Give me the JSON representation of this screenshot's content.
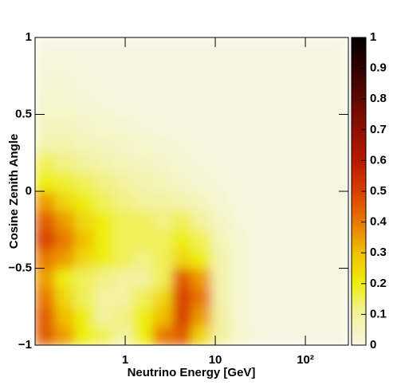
{
  "chart_data": {
    "type": "heatmap",
    "xlabel": "Neutrino Energy [GeV]",
    "ylabel": "Cosine Zenith Angle",
    "xscale": "log",
    "xlim": [
      0.1,
      300
    ],
    "ylim": [
      -1,
      1
    ],
    "xticks": [
      1,
      10,
      {
        "value": 100,
        "label": "10²"
      }
    ],
    "yticks": [
      {
        "value": -1,
        "label": "−1"
      },
      {
        "value": -0.5,
        "label": "−0.5"
      },
      0,
      0.5,
      1
    ],
    "xbins": [
      0.1,
      0.165,
      0.272,
      0.449,
      0.741,
      1.22,
      2.02,
      3.33,
      5.49,
      9.06,
      14.9,
      24.7,
      40.7,
      67.1,
      111,
      183,
      300
    ],
    "ybins": [
      -1,
      -0.875,
      -0.75,
      -0.625,
      -0.5,
      -0.375,
      -0.25,
      -0.125,
      0,
      0.125,
      0.25,
      0.375,
      0.5,
      0.625,
      0.75,
      0.875,
      1
    ],
    "z": [
      [
        0.45,
        0.35,
        0.2,
        0.15,
        0.1,
        0.2,
        0.4,
        0.45,
        0.25,
        0.1,
        0.03,
        0,
        0,
        0,
        0,
        0
      ],
      [
        0.45,
        0.3,
        0.2,
        0.1,
        0.12,
        0.2,
        0.3,
        0.5,
        0.35,
        0.1,
        0.02,
        0,
        0,
        0,
        0,
        0
      ],
      [
        0.4,
        0.25,
        0.15,
        0.1,
        0.1,
        0.15,
        0.25,
        0.5,
        0.4,
        0.08,
        0.02,
        0,
        0,
        0,
        0,
        0
      ],
      [
        0.35,
        0.2,
        0.15,
        0.12,
        0.1,
        0.1,
        0.15,
        0.45,
        0.35,
        0.08,
        0.02,
        0,
        0,
        0,
        0,
        0
      ],
      [
        0.4,
        0.35,
        0.25,
        0.2,
        0.15,
        0.12,
        0.15,
        0.25,
        0.2,
        0.08,
        0.02,
        0,
        0,
        0,
        0,
        0
      ],
      [
        0.5,
        0.4,
        0.3,
        0.2,
        0.15,
        0.15,
        0.15,
        0.2,
        0.15,
        0.06,
        0.02,
        0,
        0,
        0,
        0,
        0
      ],
      [
        0.45,
        0.35,
        0.25,
        0.2,
        0.15,
        0.15,
        0.12,
        0.15,
        0.1,
        0.04,
        0.01,
        0,
        0,
        0,
        0,
        0
      ],
      [
        0.35,
        0.25,
        0.2,
        0.15,
        0.12,
        0.1,
        0.1,
        0.08,
        0.05,
        0.02,
        0,
        0,
        0,
        0,
        0,
        0
      ],
      [
        0.2,
        0.18,
        0.15,
        0.12,
        0.1,
        0.08,
        0.06,
        0.04,
        0.02,
        0.01,
        0,
        0,
        0,
        0,
        0,
        0
      ],
      [
        0.15,
        0.12,
        0.1,
        0.08,
        0.06,
        0.05,
        0.04,
        0.02,
        0.01,
        0,
        0,
        0,
        0,
        0,
        0,
        0
      ],
      [
        0.08,
        0.08,
        0.06,
        0.05,
        0.04,
        0.03,
        0.02,
        0.01,
        0,
        0,
        0,
        0,
        0,
        0,
        0,
        0
      ],
      [
        0.05,
        0.05,
        0.04,
        0.03,
        0.02,
        0.01,
        0,
        0,
        0,
        0,
        0,
        0,
        0,
        0,
        0,
        0
      ],
      [
        0.03,
        0.03,
        0.02,
        0.01,
        0,
        0,
        0,
        0,
        0,
        0,
        0,
        0,
        0,
        0,
        0,
        0
      ],
      [
        0.02,
        0.02,
        0.01,
        0,
        0,
        0,
        0,
        0,
        0,
        0,
        0,
        0,
        0,
        0,
        0,
        0
      ],
      [
        0.01,
        0.01,
        0,
        0,
        0,
        0,
        0,
        0,
        0,
        0,
        0,
        0,
        0,
        0,
        0,
        0
      ],
      [
        0,
        0,
        0,
        0,
        0,
        0,
        0,
        0,
        0,
        0,
        0,
        0,
        0,
        0,
        0,
        0
      ]
    ],
    "zlim": [
      0,
      1
    ],
    "zticks": [
      0,
      0.1,
      0.2,
      0.3,
      0.4,
      0.5,
      0.6,
      0.7,
      0.8,
      0.9,
      1
    ],
    "colorscale": [
      "#f6f6e0",
      "#f2f2a0",
      "#eeee10",
      "#f0c000",
      "#e87800",
      "#d84000",
      "#b81800",
      "#901000",
      "#600800",
      "#300000",
      "#000000"
    ]
  }
}
